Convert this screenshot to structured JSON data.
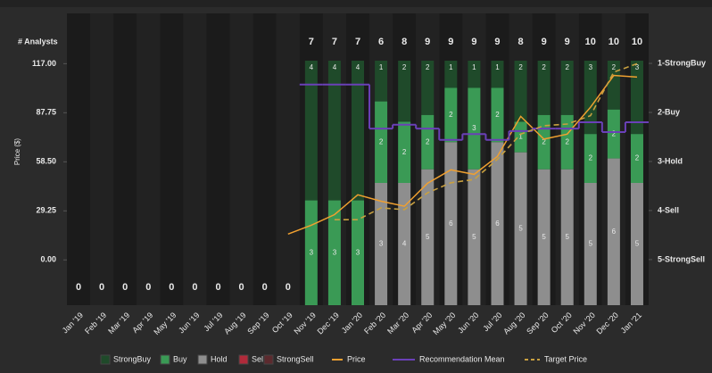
{
  "chart_data": {
    "type": "bar",
    "analysts_label": "# Analysts",
    "ylabel": "Price ($)",
    "categories": [
      "Jan '19",
      "Feb '19",
      "Mar '19",
      "Apr '19",
      "May '19",
      "Jun '19",
      "Jul '19",
      "Aug '19",
      "Sep '19",
      "Oct '19",
      "Nov '19",
      "Dec '19",
      "Jan '20",
      "Feb '20",
      "Mar '20",
      "Apr '20",
      "May '20",
      "Jun '20",
      "Jul '20",
      "Aug '20",
      "Sep '20",
      "Oct '20",
      "Nov '20",
      "Dec '20",
      "Jan '21"
    ],
    "analysts": [
      0,
      0,
      0,
      0,
      0,
      0,
      0,
      0,
      0,
      0,
      7,
      7,
      7,
      6,
      8,
      9,
      9,
      9,
      9,
      8,
      9,
      9,
      10,
      10,
      10
    ],
    "series": [
      {
        "name": "StrongBuy",
        "color": "#1f4a2a",
        "values": [
          0,
          0,
          0,
          0,
          0,
          0,
          0,
          0,
          0,
          0,
          4,
          4,
          4,
          1,
          2,
          2,
          1,
          1,
          1,
          2,
          2,
          2,
          3,
          2,
          3
        ]
      },
      {
        "name": "Buy",
        "color": "#3a9a55",
        "values": [
          0,
          0,
          0,
          0,
          0,
          0,
          0,
          0,
          0,
          0,
          3,
          3,
          3,
          2,
          2,
          2,
          2,
          3,
          2,
          1,
          2,
          2,
          2,
          2,
          2
        ]
      },
      {
        "name": "Hold",
        "color": "#8e8e8e",
        "values": [
          0,
          0,
          0,
          0,
          0,
          0,
          0,
          0,
          0,
          0,
          0,
          0,
          0,
          3,
          4,
          5,
          6,
          5,
          6,
          5,
          5,
          5,
          5,
          6,
          5
        ]
      },
      {
        "name": "Sell",
        "color": "#b02a3a",
        "values": [
          0,
          0,
          0,
          0,
          0,
          0,
          0,
          0,
          0,
          0,
          0,
          0,
          0,
          0,
          0,
          0,
          0,
          0,
          0,
          0,
          0,
          0,
          0,
          0,
          0
        ]
      },
      {
        "name": "StrongSell",
        "color": "#5c2a2e",
        "values": [
          0,
          0,
          0,
          0,
          0,
          0,
          0,
          0,
          0,
          0,
          0,
          0,
          0,
          0,
          0,
          0,
          0,
          0,
          0,
          0,
          0,
          0,
          0,
          0,
          0
        ]
      }
    ],
    "lines": [
      {
        "name": "Price",
        "color": "#f0a030",
        "type": "line",
        "values": [
          null,
          null,
          null,
          null,
          null,
          null,
          null,
          null,
          null,
          15.4,
          20.7,
          27,
          38.8,
          35,
          32,
          45.7,
          53.7,
          51,
          61.7,
          85.6,
          72,
          75,
          91,
          110,
          109
        ]
      },
      {
        "name": "Recommendation Mean",
        "color": "#6a40b8",
        "type": "step",
        "axis": "y2",
        "values": [
          null,
          null,
          null,
          null,
          null,
          null,
          null,
          null,
          null,
          null,
          1.43,
          1.43,
          1.43,
          2.33,
          2.25,
          2.33,
          2.56,
          2.44,
          2.56,
          2.38,
          2.33,
          2.33,
          2.2,
          2.4,
          2.2
        ]
      },
      {
        "name": "Target Price",
        "color": "#c8a040",
        "type": "dashed",
        "values": [
          null,
          null,
          null,
          null,
          null,
          null,
          null,
          null,
          null,
          null,
          null,
          24,
          24,
          31,
          30,
          40,
          46,
          48,
          60,
          75,
          80,
          81,
          86,
          112,
          117
        ]
      }
    ],
    "ylim": [
      -27,
      147
    ],
    "yticks": [
      {
        "value": 0,
        "label": "0.00"
      },
      {
        "value": 29.25,
        "label": "29.25"
      },
      {
        "value": 58.5,
        "label": "58.50"
      },
      {
        "value": 87.75,
        "label": "87.75"
      },
      {
        "value": 117,
        "label": "117.00"
      }
    ],
    "y2lim": [
      5.93,
      -0.02
    ],
    "y2ticks": [
      {
        "value": 1,
        "label": "1-StrongBuy"
      },
      {
        "value": 2,
        "label": "2-Buy"
      },
      {
        "value": 3,
        "label": "3-Hold"
      },
      {
        "value": 4,
        "label": "4-Sell"
      },
      {
        "value": 5,
        "label": "5-StrongSell"
      }
    ]
  }
}
